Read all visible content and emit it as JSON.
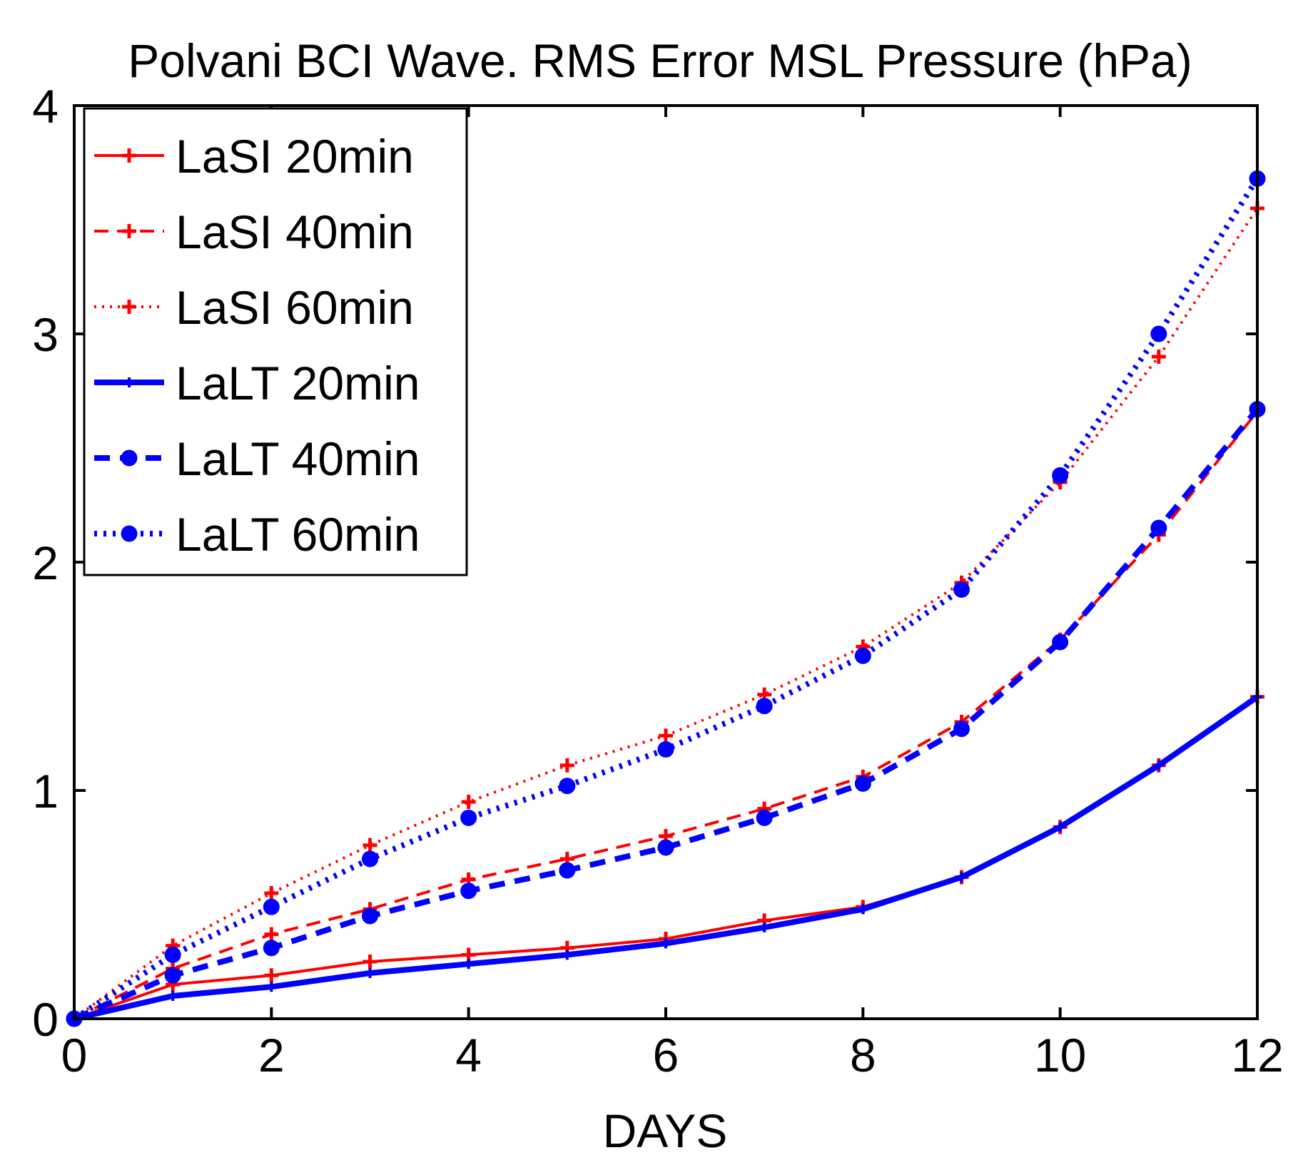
{
  "chart_data": {
    "type": "line",
    "title": "Polvani BCI Wave. RMS Error MSL Pressure (hPa)",
    "xlabel": "DAYS",
    "ylabel": "",
    "xlim": [
      0,
      12
    ],
    "ylim": [
      0,
      4
    ],
    "xticks": [
      "0",
      "2",
      "4",
      "6",
      "8",
      "10",
      "12"
    ],
    "yticks": [
      "0",
      "1",
      "2",
      "3",
      "4"
    ],
    "grid": false,
    "legend_position": "top-left",
    "x": [
      0,
      1,
      2,
      3,
      4,
      5,
      6,
      7,
      8,
      9,
      10,
      11,
      12
    ],
    "series": [
      {
        "name": "LaSI 20min",
        "color": "#ff0000",
        "style": "solid",
        "weight": "thin",
        "marker": "plus",
        "values": [
          0,
          0.15,
          0.19,
          0.25,
          0.28,
          0.31,
          0.35,
          0.43,
          0.49,
          0.62,
          0.84,
          1.11,
          1.41
        ]
      },
      {
        "name": "LaSI 40min",
        "color": "#ff0000",
        "style": "dashed",
        "weight": "thin",
        "marker": "plus",
        "values": [
          0,
          0.22,
          0.37,
          0.48,
          0.61,
          0.7,
          0.8,
          0.92,
          1.06,
          1.3,
          1.66,
          2.12,
          2.66
        ]
      },
      {
        "name": "LaSI 60min",
        "color": "#ff0000",
        "style": "dotted",
        "weight": "thin",
        "marker": "plus",
        "values": [
          0,
          0.32,
          0.55,
          0.76,
          0.95,
          1.11,
          1.24,
          1.42,
          1.63,
          1.91,
          2.35,
          2.9,
          3.55
        ]
      },
      {
        "name": "LaLT 20min",
        "color": "#0000ff",
        "style": "solid",
        "weight": "thick",
        "marker": "plus",
        "values": [
          0,
          0.1,
          0.14,
          0.2,
          0.24,
          0.28,
          0.33,
          0.4,
          0.48,
          0.62,
          0.84,
          1.11,
          1.41
        ]
      },
      {
        "name": "LaLT 40min",
        "color": "#0000ff",
        "style": "dashed",
        "weight": "thick",
        "marker": "circle",
        "values": [
          0,
          0.19,
          0.31,
          0.45,
          0.56,
          0.65,
          0.75,
          0.88,
          1.03,
          1.27,
          1.65,
          2.15,
          2.67
        ]
      },
      {
        "name": "LaLT 60min",
        "color": "#0000ff",
        "style": "dotted",
        "weight": "thick",
        "marker": "circle",
        "values": [
          0,
          0.28,
          0.49,
          0.7,
          0.88,
          1.02,
          1.18,
          1.37,
          1.59,
          1.88,
          2.38,
          3.0,
          3.68
        ]
      }
    ]
  }
}
